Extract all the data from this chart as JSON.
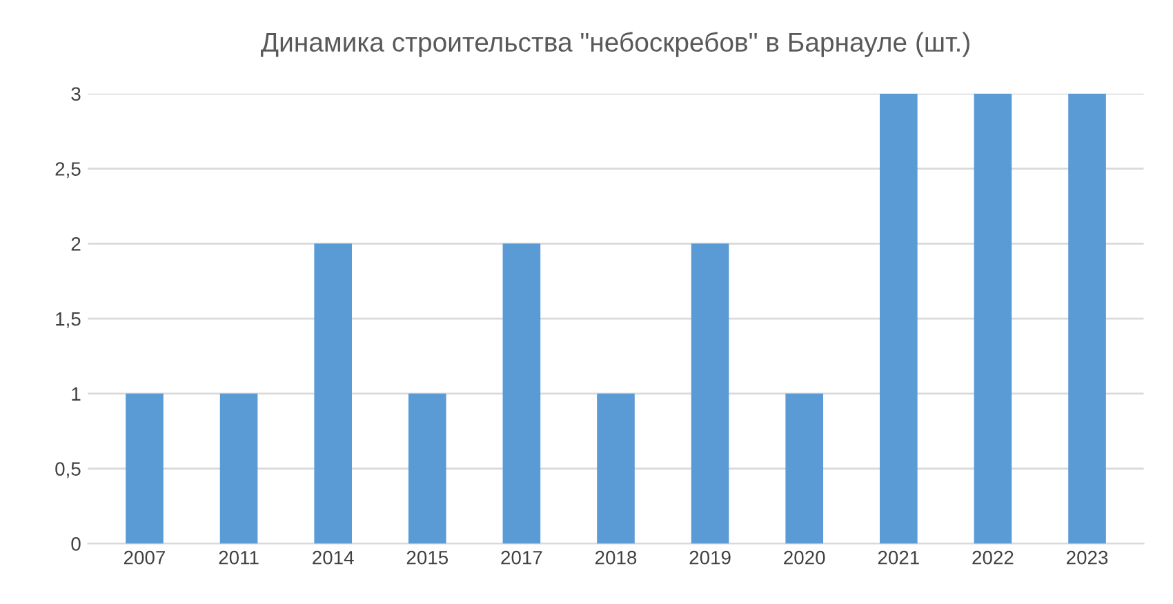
{
  "chart_data": {
    "type": "bar",
    "title": "Динамика строительства \"небоскребов\" в Барнауле (шт.)",
    "categories": [
      "2007",
      "2011",
      "2014",
      "2015",
      "2017",
      "2018",
      "2019",
      "2020",
      "2021",
      "2022",
      "2023"
    ],
    "values": [
      1,
      1,
      2,
      1,
      2,
      1,
      2,
      1,
      3,
      3,
      3
    ],
    "color": "#5b9bd5",
    "ylim": [
      0,
      3
    ],
    "yticks": [
      0,
      {
        "value": 0.5,
        "label": "0,5"
      },
      1,
      {
        "value": 1.5,
        "label": "1,5"
      },
      2,
      {
        "value": 2.5,
        "label": "2,5"
      },
      3
    ],
    "grid": "y"
  }
}
